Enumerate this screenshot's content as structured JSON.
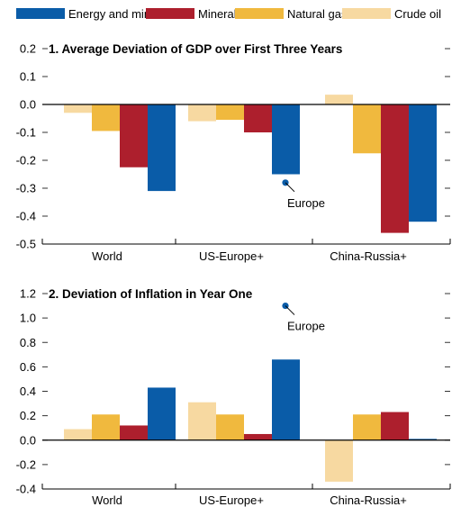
{
  "legend": [
    {
      "name": "Energy and minerals",
      "color": "#0a5ca8"
    },
    {
      "name": "Minerals",
      "color": "#ad1f2d"
    },
    {
      "name": "Natural gas",
      "color": "#f0b93e"
    },
    {
      "name": "Crude oil",
      "color": "#f7d9a1"
    }
  ],
  "chart_data": [
    {
      "type": "bar",
      "title": "1. Average Deviation of GDP over First Three Years",
      "categories": [
        "World",
        "US-Europe+",
        "China-Russia+"
      ],
      "ylim": [
        -0.5,
        0.2
      ],
      "yticks": [
        "0.2",
        "0.1",
        "0.0",
        "-0.1",
        "-0.2",
        "-0.3",
        "-0.4",
        "-0.5"
      ],
      "series": [
        {
          "name": "Crude oil",
          "values": [
            -0.03,
            -0.06,
            0.035
          ]
        },
        {
          "name": "Natural gas",
          "values": [
            -0.095,
            -0.055,
            -0.175
          ]
        },
        {
          "name": "Minerals",
          "values": [
            -0.225,
            -0.1,
            -0.46
          ]
        },
        {
          "name": "Energy and minerals",
          "values": [
            -0.31,
            -0.25,
            -0.42
          ]
        }
      ],
      "annotation": {
        "label": "Europe",
        "value": -0.28,
        "category": "US-Europe+"
      }
    },
    {
      "type": "bar",
      "title": "2. Deviation of Inflation in Year One",
      "categories": [
        "World",
        "US-Europe+",
        "China-Russia+"
      ],
      "ylim": [
        -0.4,
        1.2
      ],
      "yticks": [
        "1.2",
        "1.0",
        "0.8",
        "0.6",
        "0.4",
        "0.2",
        "0.0",
        "-0.2",
        "-0.4"
      ],
      "series": [
        {
          "name": "Crude oil",
          "values": [
            0.09,
            0.31,
            -0.34
          ]
        },
        {
          "name": "Natural gas",
          "values": [
            0.21,
            0.21,
            0.21
          ]
        },
        {
          "name": "Minerals",
          "values": [
            0.12,
            0.05,
            0.23
          ]
        },
        {
          "name": "Energy and minerals",
          "values": [
            0.43,
            0.66,
            0.01
          ]
        }
      ],
      "annotation": {
        "label": "Europe",
        "value": 1.1,
        "category": "US-Europe+"
      }
    }
  ]
}
